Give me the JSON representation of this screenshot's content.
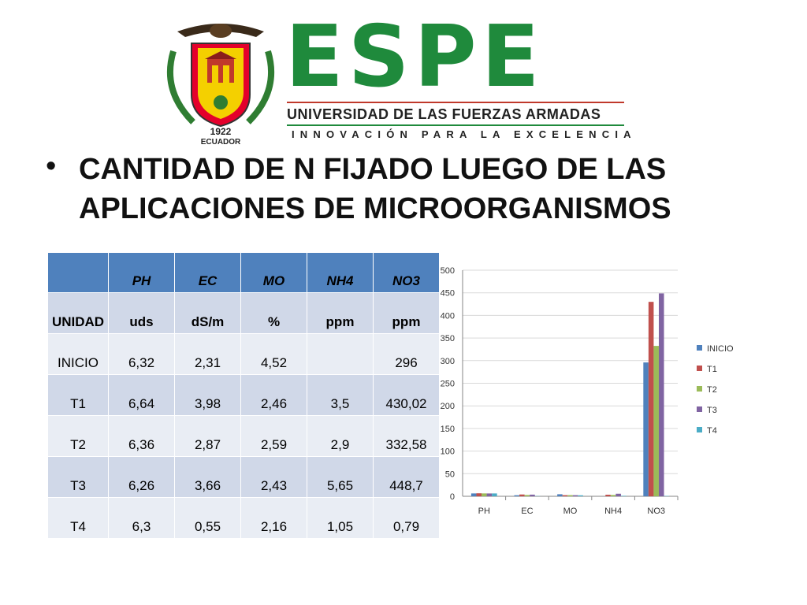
{
  "header": {
    "brand_name": "ESPE",
    "university": "UNIVERSIDAD DE LAS FUERZAS ARMADAS",
    "slogan": "INNOVACIÓN PARA LA EXCELENCIA",
    "emblem_year": "1922",
    "emblem_country": "ECUADOR"
  },
  "title": "CANTIDAD DE N FIJADO LUEGO DE LAS APLICACIONES DE MICROORGANISMOS",
  "table": {
    "headers": [
      "",
      "PH",
      "EC",
      "MO",
      "NH4",
      "NO3"
    ],
    "units": [
      "UNIDAD",
      "uds",
      "dS/m",
      "%",
      "ppm",
      "ppm"
    ],
    "rows": [
      [
        "INICIO",
        "6,32",
        "2,31",
        "4,52",
        "",
        "296"
      ],
      [
        "T1",
        "6,64",
        "3,98",
        "2,46",
        "3,5",
        "430,02"
      ],
      [
        "T2",
        "6,36",
        "2,87",
        "2,59",
        "2,9",
        "332,58"
      ],
      [
        "T3",
        "6,26",
        "3,66",
        "2,43",
        "5,65",
        "448,7"
      ],
      [
        "T4",
        "6,3",
        "0,55",
        "2,16",
        "1,05",
        "0,79"
      ]
    ]
  },
  "colors": {
    "brand_green": "#1f8a3c",
    "brand_red": "#c0392b",
    "table_header": "#4f81bd",
    "table_band_dark": "#d0d8e8",
    "table_band_light": "#e9edf4"
  },
  "chart_data": {
    "type": "bar",
    "categories": [
      "PH",
      "EC",
      "MO",
      "NH4",
      "NO3"
    ],
    "series": [
      {
        "name": "INICIO",
        "color": "#4f81bd",
        "values": [
          6.32,
          2.31,
          4.52,
          0,
          296
        ]
      },
      {
        "name": "T1",
        "color": "#c0504d",
        "values": [
          6.64,
          3.98,
          2.46,
          3.5,
          430.02
        ]
      },
      {
        "name": "T2",
        "color": "#9bbb59",
        "values": [
          6.36,
          2.87,
          2.59,
          2.9,
          332.58
        ]
      },
      {
        "name": "T3",
        "color": "#8064a2",
        "values": [
          6.26,
          3.66,
          2.43,
          5.65,
          448.7
        ]
      },
      {
        "name": "T4",
        "color": "#4bacc6",
        "values": [
          6.3,
          0.55,
          2.16,
          1.05,
          0.79
        ]
      }
    ],
    "ylim": [
      0,
      500
    ],
    "yticks": [
      0,
      50,
      100,
      150,
      200,
      250,
      300,
      350,
      400,
      450,
      500
    ],
    "grid": true,
    "legend": "right"
  }
}
